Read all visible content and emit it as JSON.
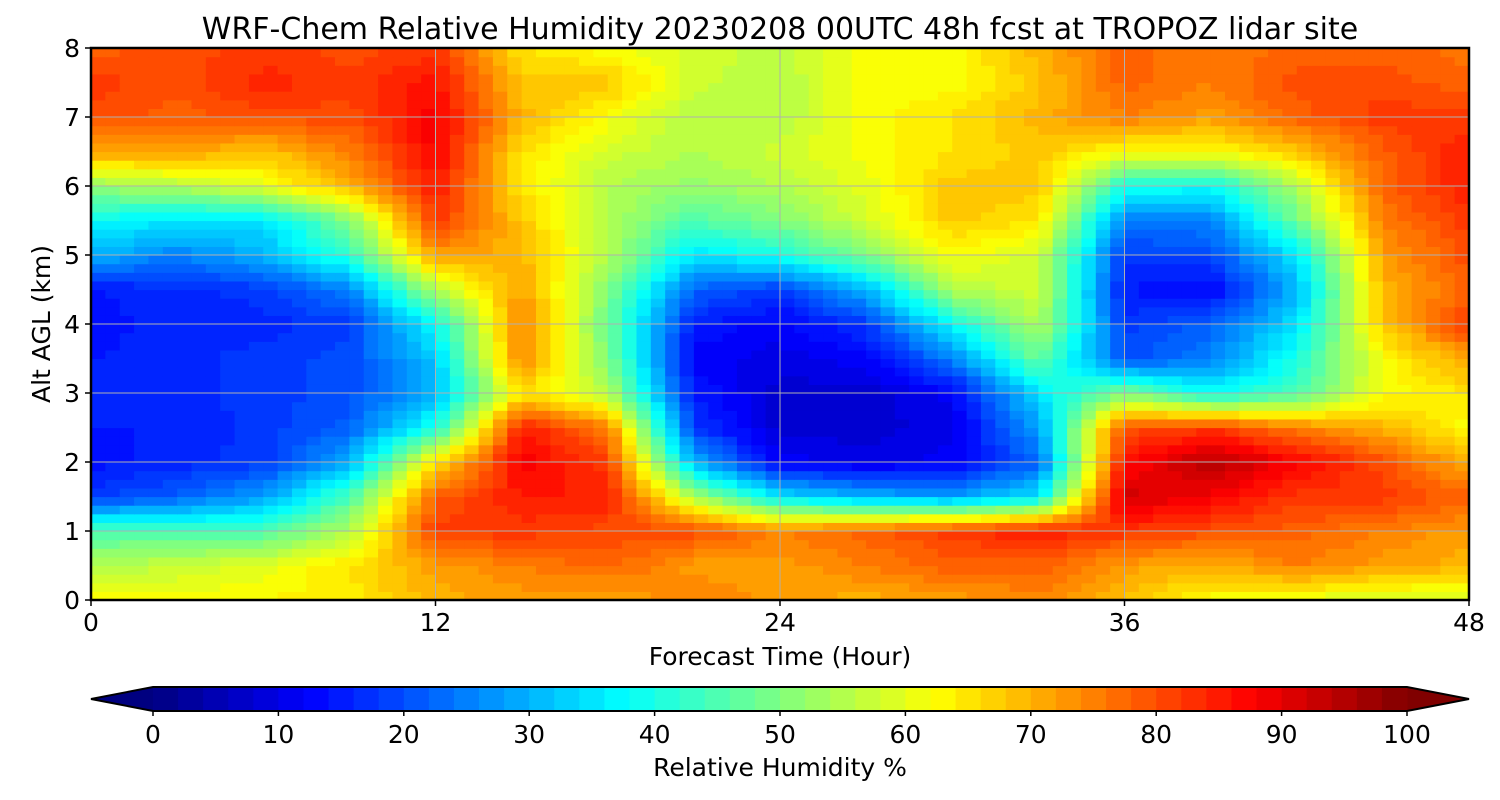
{
  "chart_data": {
    "type": "heatmap",
    "title": "WRF-Chem Relative Humidity 20230208 00UTC 48h fcst at TROPOZ lidar site",
    "xlabel": "Forecast Time (Hour)",
    "ylabel": "Alt AGL (km)",
    "xlim": [
      0,
      48
    ],
    "ylim": [
      0,
      8
    ],
    "xticks": [
      "0",
      "12",
      "24",
      "36",
      "48"
    ],
    "yticks": [
      "0",
      "1",
      "2",
      "3",
      "4",
      "5",
      "6",
      "7",
      "8"
    ],
    "grid": true,
    "x_hours": [
      0,
      3,
      6,
      9,
      12,
      15,
      18,
      21,
      24,
      27,
      30,
      33,
      36,
      39,
      42,
      45,
      48
    ],
    "y_km": [
      0,
      0.5,
      1,
      1.5,
      2,
      2.5,
      3,
      3.5,
      4,
      4.5,
      5,
      5.5,
      6,
      6.5,
      7,
      7.5,
      8
    ],
    "z_rh_percent": [
      [
        62,
        62,
        63,
        64,
        70,
        72,
        70,
        75,
        72,
        70,
        72,
        74,
        68,
        62,
        60,
        58,
        58
      ],
      [
        55,
        57,
        60,
        65,
        72,
        75,
        78,
        72,
        72,
        75,
        78,
        78,
        72,
        70,
        75,
        72,
        70
      ],
      [
        45,
        45,
        45,
        55,
        82,
        82,
        80,
        80,
        75,
        78,
        82,
        85,
        82,
        80,
        78,
        75,
        72
      ],
      [
        18,
        22,
        28,
        45,
        78,
        85,
        85,
        55,
        35,
        30,
        28,
        35,
        92,
        88,
        82,
        82,
        78
      ],
      [
        14,
        16,
        18,
        30,
        65,
        88,
        82,
        30,
        12,
        10,
        12,
        22,
        86,
        95,
        88,
        80,
        70
      ],
      [
        15,
        15,
        18,
        22,
        40,
        85,
        75,
        18,
        8,
        8,
        10,
        28,
        80,
        82,
        75,
        70,
        62
      ],
      [
        16,
        16,
        18,
        20,
        30,
        65,
        55,
        15,
        8,
        8,
        12,
        35,
        50,
        38,
        45,
        62,
        65
      ],
      [
        15,
        16,
        18,
        20,
        32,
        75,
        50,
        12,
        10,
        12,
        25,
        48,
        20,
        25,
        40,
        62,
        72
      ],
      [
        14,
        16,
        16,
        18,
        38,
        75,
        48,
        15,
        12,
        18,
        38,
        55,
        18,
        22,
        35,
        68,
        82
      ],
      [
        15,
        16,
        18,
        25,
        55,
        72,
        50,
        22,
        18,
        30,
        55,
        58,
        15,
        12,
        30,
        70,
        78
      ],
      [
        30,
        25,
        30,
        42,
        72,
        70,
        55,
        35,
        40,
        50,
        62,
        58,
        18,
        20,
        35,
        72,
        80
      ],
      [
        38,
        35,
        35,
        50,
        82,
        68,
        55,
        45,
        50,
        58,
        68,
        65,
        25,
        25,
        48,
        75,
        82
      ],
      [
        52,
        55,
        60,
        70,
        85,
        65,
        55,
        52,
        55,
        60,
        68,
        68,
        40,
        38,
        55,
        78,
        85
      ],
      [
        72,
        72,
        68,
        75,
        88,
        65,
        58,
        55,
        58,
        62,
        65,
        68,
        62,
        62,
        68,
        78,
        85
      ],
      [
        80,
        78,
        80,
        80,
        88,
        70,
        62,
        55,
        55,
        62,
        65,
        70,
        75,
        72,
        78,
        82,
        82
      ],
      [
        82,
        80,
        84,
        82,
        86,
        68,
        68,
        58,
        55,
        62,
        62,
        68,
        78,
        75,
        80,
        80,
        78
      ],
      [
        78,
        80,
        82,
        80,
        82,
        65,
        62,
        58,
        56,
        62,
        62,
        70,
        78,
        75,
        78,
        78,
        76
      ]
    ]
  },
  "colorbar": {
    "label": "Relative Humidity %",
    "ticks": [
      "0",
      "10",
      "20",
      "30",
      "40",
      "50",
      "60",
      "70",
      "80",
      "90",
      "100"
    ],
    "range": [
      0,
      100
    ],
    "colormap": "jet",
    "extend": "both"
  }
}
